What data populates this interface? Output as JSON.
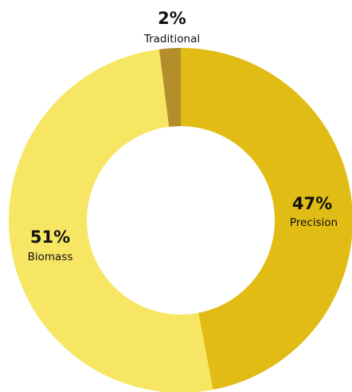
{
  "chart_data": {
    "type": "pie",
    "donut": true,
    "title": "",
    "series": [
      {
        "category": "Precision",
        "value": 47,
        "label": "47%",
        "color": "#E0BC14"
      },
      {
        "category": "Biomass",
        "value": 51,
        "label": "51%",
        "color": "#F7E664"
      },
      {
        "category": "Traditional",
        "value": 2,
        "label": "2%",
        "color": "#B58E2C"
      }
    ],
    "legend": "none",
    "start_angle": "top",
    "direction": "clockwise"
  }
}
